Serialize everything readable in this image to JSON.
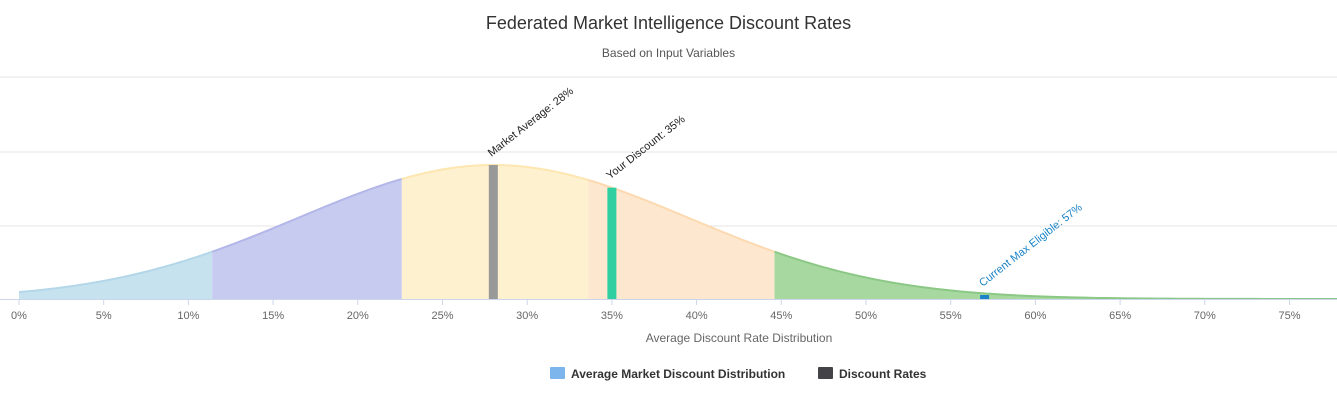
{
  "chart_data": {
    "type": "area",
    "title": "Federated Market Intelligence Discount Rates",
    "subtitle": "Based on Input Variables",
    "xlabel": "Average Discount Rate Distribution",
    "ylabel": "",
    "x_unit": "%",
    "xlim": [
      0,
      78
    ],
    "x_ticks": [
      "0%",
      "5%",
      "10%",
      "15%",
      "20%",
      "25%",
      "30%",
      "35%",
      "40%",
      "45%",
      "50%",
      "55%",
      "60%",
      "65%",
      "70%",
      "75%"
    ],
    "x_tick_values": [
      0,
      5,
      10,
      15,
      20,
      25,
      30,
      35,
      40,
      45,
      50,
      55,
      60,
      65,
      70,
      75
    ],
    "y_gridlines": 4,
    "y_tick_labels_visible": false,
    "distribution": {
      "name": "Average Market Discount Distribution",
      "shape": "normal",
      "mean": 28,
      "std_dev": 11.5
    },
    "segments": [
      {
        "from": 0,
        "to": 11.4,
        "color": "#c6e2ef",
        "line_color": "#b3d7e8"
      },
      {
        "from": 11.4,
        "to": 22.6,
        "color": "#c8cbf0",
        "line_color": "#b3b6e8"
      },
      {
        "from": 22.6,
        "to": 33.6,
        "color": "#fef1cf",
        "line_color": "#fde6b0"
      },
      {
        "from": 33.6,
        "to": 44.6,
        "color": "#fde8cf",
        "line_color": "#fcd9b0"
      },
      {
        "from": 44.6,
        "to": 78,
        "color": "#a6d8a0",
        "line_color": "#8cc885"
      }
    ],
    "markers_series_name": "Discount Rates",
    "markers": [
      {
        "label": "Market Average: 28%",
        "value": 28,
        "color": "#999999",
        "label_color": "#222222"
      },
      {
        "label": "Your Discount: 35%",
        "value": 35,
        "color": "#2fcfa1",
        "label_color": "#222222"
      },
      {
        "label": "Current Max Eligible: 57%",
        "value": 57,
        "color": "#1a84c7",
        "label_color": "#1a84c7"
      }
    ],
    "legend": {
      "placement": "bottom-center",
      "items": [
        {
          "label": "Average Market Discount Distribution",
          "color": "#7cb5ec"
        },
        {
          "label": "Discount Rates",
          "color": "#434348"
        }
      ]
    }
  }
}
